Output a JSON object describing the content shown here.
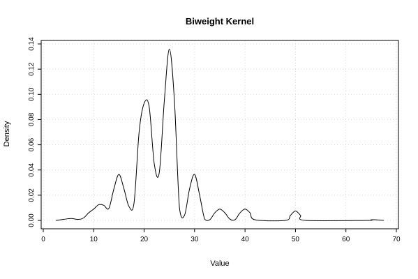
{
  "chart_data": {
    "type": "line",
    "title": "Biweight Kernel",
    "xlabel": "Value",
    "ylabel": "Density",
    "xlim": [
      0,
      70
    ],
    "ylim": [
      0,
      0.14
    ],
    "x_ticks": [
      "0",
      "10",
      "20",
      "30",
      "40",
      "50",
      "60",
      "70"
    ],
    "y_ticks": [
      "0.00",
      "0.02",
      "0.04",
      "0.06",
      "0.08",
      "0.10",
      "0.12",
      "0.14"
    ],
    "grid": true,
    "series": [
      {
        "points": [
          [
            2.5,
            0.0
          ],
          [
            4,
            0.0008
          ],
          [
            5.5,
            0.0015
          ],
          [
            7,
            0.0008
          ],
          [
            8,
            0.002
          ],
          [
            9,
            0.006
          ],
          [
            10,
            0.009
          ],
          [
            11,
            0.0125
          ],
          [
            12,
            0.012
          ],
          [
            13,
            0.0095
          ],
          [
            14,
            0.025
          ],
          [
            15,
            0.0365
          ],
          [
            16,
            0.025
          ],
          [
            17,
            0.011
          ],
          [
            18,
            0.014
          ],
          [
            19,
            0.07
          ],
          [
            20,
            0.093
          ],
          [
            21,
            0.09
          ],
          [
            22,
            0.045
          ],
          [
            23,
            0.038
          ],
          [
            24,
            0.095
          ],
          [
            25,
            0.136
          ],
          [
            26,
            0.095
          ],
          [
            27,
            0.01
          ],
          [
            28,
            0.004
          ],
          [
            29,
            0.025
          ],
          [
            30,
            0.0365
          ],
          [
            31,
            0.02
          ],
          [
            32,
            0.001
          ],
          [
            33,
            0.0005
          ],
          [
            34,
            0.006
          ],
          [
            35,
            0.009
          ],
          [
            36,
            0.006
          ],
          [
            37,
            0.001
          ],
          [
            38,
            0.0005
          ],
          [
            39,
            0.006
          ],
          [
            40,
            0.009
          ],
          [
            41,
            0.006
          ],
          [
            42,
            0.0005
          ],
          [
            48,
            0.0
          ],
          [
            49,
            0.004
          ],
          [
            50,
            0.0075
          ],
          [
            51,
            0.004
          ],
          [
            52,
            0.0
          ],
          [
            64,
            0.0
          ],
          [
            65,
            0.0005
          ],
          [
            66,
            0.0005
          ],
          [
            67.5,
            0.0
          ]
        ]
      }
    ]
  }
}
